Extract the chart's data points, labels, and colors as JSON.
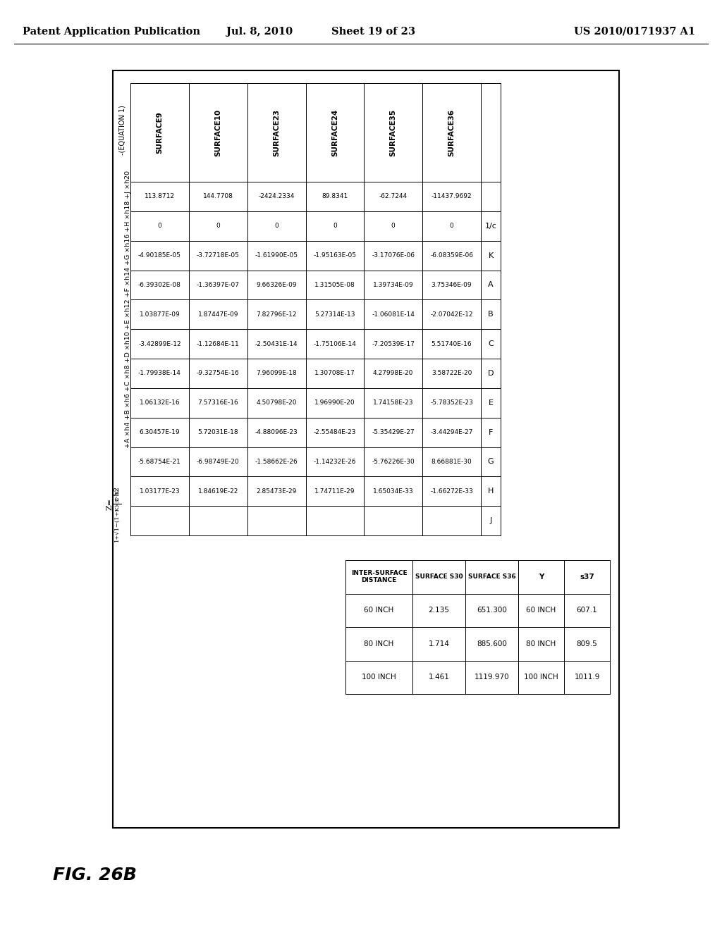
{
  "title_header": "Patent Application Publication",
  "date": "Jul. 8, 2010",
  "sheet": "Sheet 19 of 23",
  "patent_num": "US 2010/0171937 A1",
  "fig_label": "FIG. 26B",
  "equation_label": "-(EQUATION 1)",
  "main_table": {
    "row_labels": [
      "",
      "1/c",
      "K",
      "A",
      "B",
      "C",
      "D",
      "E",
      "F",
      "G",
      "H",
      "J"
    ],
    "columns": [
      "SURFACE9",
      "SURFACE10",
      "SURFACE23",
      "SURFACE24",
      "SURFACE35",
      "SURFACE36"
    ],
    "data": [
      [
        "113.8712",
        "144.7708",
        "-2424.2334",
        "89.8341",
        "-62.7244",
        "-11437.9692"
      ],
      [
        "0",
        "0",
        "0",
        "0",
        "0",
        "0"
      ],
      [
        "-4.90185E-05",
        "-3.72718E-05",
        "-1.61990E-05",
        "-1.95163E-05",
        "-3.17076E-06",
        "-6.08359E-06"
      ],
      [
        "-6.39302E-08",
        "-1.36397E-07",
        "9.66326E-09",
        "1.31505E-08",
        "1.39734E-09",
        "3.75346E-09"
      ],
      [
        "1.03877E-09",
        "1.87447E-09",
        "7.82796E-12",
        "5.27314E-13",
        "-1.06081E-14",
        "-2.07042E-12"
      ],
      [
        "-3.42899E-12",
        "-1.12684E-11",
        "-2.50431E-14",
        "-1.75106E-14",
        "-7.20539E-17",
        "5.51740E-16"
      ],
      [
        "-1.79938E-14",
        "-9.32754E-16",
        "7.96099E-18",
        "1.30708E-17",
        "4.27998E-20",
        "3.58722E-20"
      ],
      [
        "1.06132E-16",
        "7.57316E-16",
        "4.50798E-20",
        "1.96990E-20",
        "1.74158E-23",
        "-5.78352E-23"
      ],
      [
        "6.30457E-19",
        "5.72031E-18",
        "-4.88096E-23",
        "-2.55484E-23",
        "-5.35429E-27",
        "-3.44294E-27"
      ],
      [
        "-5.68754E-21",
        "-6.98749E-20",
        "-1.58662E-26",
        "-1.14232E-26",
        "-5.76226E-30",
        "8.66881E-30"
      ],
      [
        "1.03177E-23",
        "1.84619E-22",
        "2.85473E-29",
        "1.74711E-29",
        "1.65034E-33",
        "-1.66272E-33"
      ]
    ]
  },
  "inter_surface_table": {
    "headers": [
      "INTER-SURFACE\nDISTANCE",
      "SURFACE S30",
      "SURFACE S36"
    ],
    "rows": [
      [
        "60 INCH",
        "2.135",
        "651.300"
      ],
      [
        "80 INCH",
        "1.714",
        "885.600"
      ],
      [
        "100 INCH",
        "1.461",
        "1119.970"
      ]
    ]
  },
  "y_table": {
    "headers": [
      "Y",
      "s37"
    ],
    "rows": [
      [
        "60 INCH",
        "607.1"
      ],
      [
        "80 INCH",
        "809.5"
      ],
      [
        "100 INCH",
        "1011.9"
      ]
    ]
  },
  "background_color": "#ffffff"
}
